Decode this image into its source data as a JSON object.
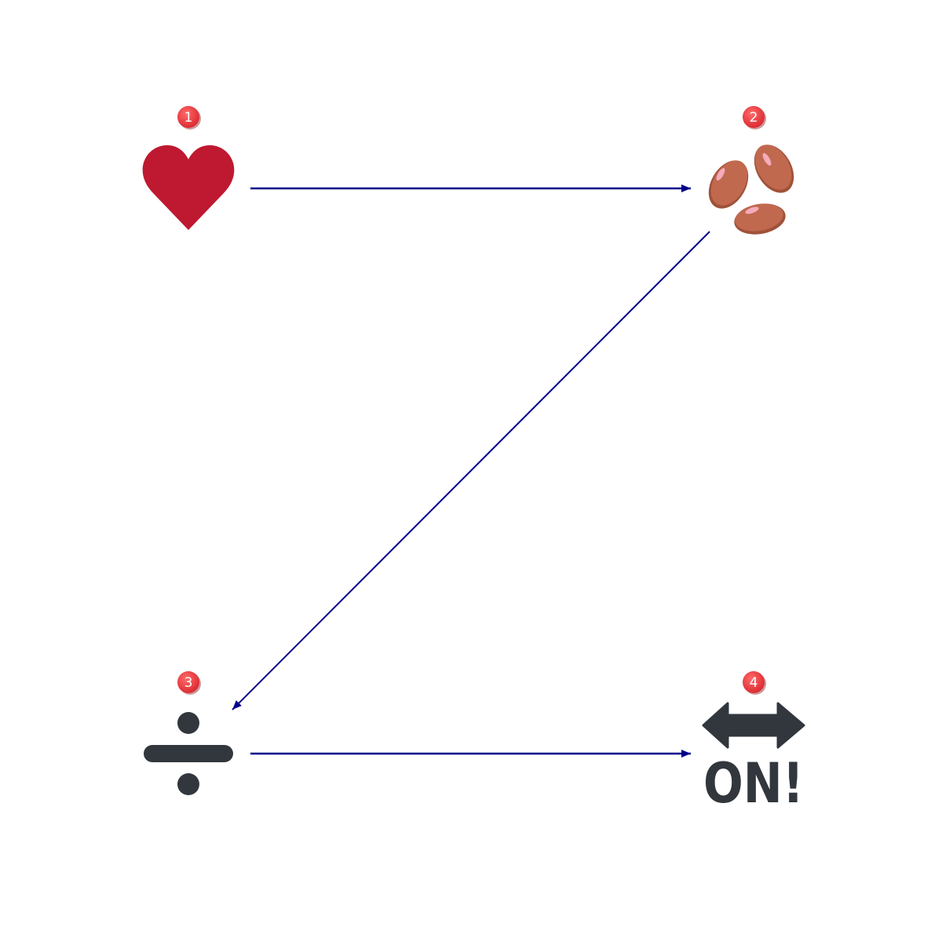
{
  "diagram": {
    "nodes": [
      {
        "id": "1",
        "badge": "1",
        "icon": "red-heart-icon"
      },
      {
        "id": "2",
        "badge": "2",
        "icon": "beans-icon"
      },
      {
        "id": "3",
        "badge": "3",
        "icon": "division-sign-icon"
      },
      {
        "id": "4",
        "badge": "4",
        "icon": "on-arrow-icon",
        "text": "ON!"
      }
    ],
    "edges": [
      {
        "from": "1",
        "to": "2"
      },
      {
        "from": "2",
        "to": "3"
      },
      {
        "from": "3",
        "to": "4"
      }
    ],
    "colors": {
      "arrow": "#00008b",
      "badge": "#e8333a",
      "heart": "#be1931",
      "bean": "#c1694f",
      "bean_highlight": "#f4abba",
      "icon_dark": "#31373d"
    }
  }
}
